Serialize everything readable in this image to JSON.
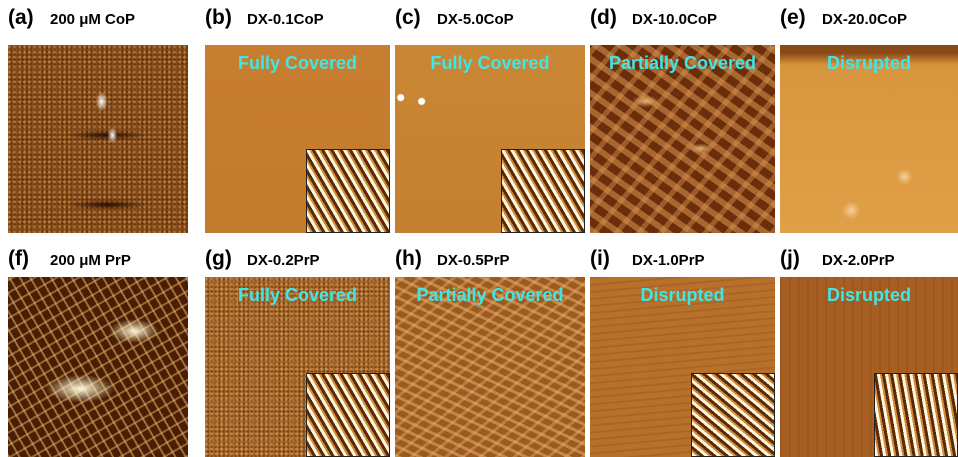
{
  "panels": [
    {
      "label": "(a)",
      "title": "200 μM CoP"
    },
    {
      "label": "(b)",
      "title": "DX-0.1CoP",
      "status": "Fully Covered"
    },
    {
      "label": "(c)",
      "title": "DX-5.0CoP",
      "status": "Fully Covered"
    },
    {
      "label": "(d)",
      "title": "DX-10.0CoP",
      "status": "Partially Covered"
    },
    {
      "label": "(e)",
      "title": "DX-20.0CoP",
      "status": "Disrupted"
    },
    {
      "label": "(f)",
      "title": "200 μM PrP"
    },
    {
      "label": "(g)",
      "title": "DX-0.2PrP",
      "status": "Fully Covered"
    },
    {
      "label": "(h)",
      "title": "DX-0.5PrP",
      "status": "Partially Covered"
    },
    {
      "label": "(i)",
      "title": "DX-1.0PrP",
      "status": "Disrupted"
    },
    {
      "label": "(j)",
      "title": "DX-2.0PrP",
      "status": "Disrupted"
    }
  ]
}
